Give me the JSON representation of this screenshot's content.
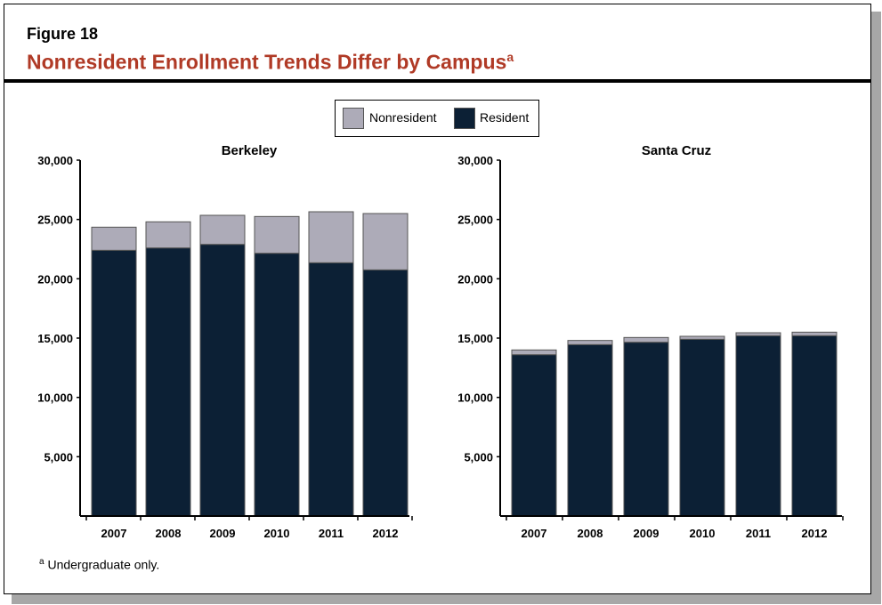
{
  "header": {
    "figure_label": "Figure 18",
    "title": "Nonresident Enrollment Trends Differ by Campus",
    "title_note": "a"
  },
  "legend": [
    {
      "name": "Nonresident",
      "color": "#adabb8"
    },
    {
      "name": "Resident",
      "color": "#0c2035"
    }
  ],
  "footnote": {
    "mark": "a",
    "text": "Undergraduate only."
  },
  "chart_data": [
    {
      "type": "bar",
      "stacked": true,
      "title": "Berkeley",
      "categories": [
        "2007",
        "2008",
        "2009",
        "2010",
        "2011",
        "2012"
      ],
      "ylim": [
        0,
        30000
      ],
      "yticks": [
        "5,000",
        "10,000",
        "15,000",
        "20,000",
        "25,000",
        "30,000"
      ],
      "series": [
        {
          "name": "Resident",
          "values": [
            22400,
            22600,
            22900,
            22150,
            21350,
            20750
          ]
        },
        {
          "name": "Nonresident",
          "values": [
            1950,
            2200,
            2450,
            3100,
            4300,
            4750
          ]
        }
      ]
    },
    {
      "type": "bar",
      "stacked": true,
      "title": "Santa Cruz",
      "categories": [
        "2007",
        "2008",
        "2009",
        "2010",
        "2011",
        "2012"
      ],
      "ylim": [
        0,
        30000
      ],
      "yticks": [
        "5,000",
        "10,000",
        "15,000",
        "20,000",
        "25,000",
        "30,000"
      ],
      "series": [
        {
          "name": "Resident",
          "values": [
            13600,
            14450,
            14650,
            14900,
            15200,
            15200
          ]
        },
        {
          "name": "Nonresident",
          "values": [
            400,
            350,
            400,
            250,
            250,
            300
          ]
        }
      ]
    }
  ]
}
